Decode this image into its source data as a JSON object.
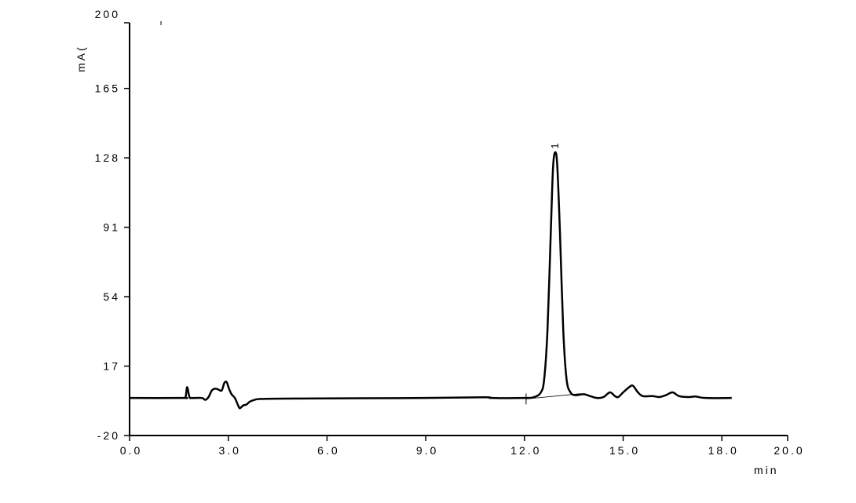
{
  "chart_data": {
    "type": "line",
    "title": "",
    "xlabel": "min",
    "ylabel": "mA(",
    "xlim": [
      0,
      20
    ],
    "ylim": [
      -20,
      200
    ],
    "x_ticks": [
      "0.0",
      "3.0",
      "6.0",
      "9.0",
      "12.0",
      "15.0",
      "18.0",
      "20.0"
    ],
    "x_tick_values": [
      0,
      3,
      6,
      9,
      12,
      15,
      18,
      20
    ],
    "y_ticks": [
      "-20",
      "17",
      "54",
      "91",
      "128",
      "165",
      "200"
    ],
    "y_tick_values": [
      -20,
      17,
      54,
      91,
      128,
      165,
      200
    ],
    "grid": false,
    "line_color": "#000000",
    "series": [
      {
        "points": [
          [
            0,
            0
          ],
          [
            1.6,
            0
          ],
          [
            1.7,
            0.5
          ],
          [
            1.75,
            5.8
          ],
          [
            1.82,
            0.5
          ],
          [
            1.9,
            0
          ],
          [
            2.2,
            0
          ],
          [
            2.3,
            -1
          ],
          [
            2.4,
            0.5
          ],
          [
            2.5,
            4
          ],
          [
            2.6,
            5
          ],
          [
            2.7,
            4.5
          ],
          [
            2.8,
            4
          ],
          [
            2.88,
            8
          ],
          [
            2.95,
            8.5
          ],
          [
            3.02,
            5
          ],
          [
            3.1,
            2
          ],
          [
            3.2,
            0
          ],
          [
            3.3,
            -4
          ],
          [
            3.35,
            -5.5
          ],
          [
            3.45,
            -4
          ],
          [
            3.55,
            -3.5
          ],
          [
            3.65,
            -2
          ],
          [
            3.8,
            -1
          ],
          [
            4.0,
            -0.5
          ],
          [
            5,
            -0.3
          ],
          [
            9,
            0
          ],
          [
            10.8,
            0.4
          ],
          [
            11,
            0
          ],
          [
            12.0,
            0
          ],
          [
            12.3,
            0.5
          ],
          [
            12.5,
            3
          ],
          [
            12.6,
            10
          ],
          [
            12.7,
            36
          ],
          [
            12.8,
            88
          ],
          [
            12.87,
            123
          ],
          [
            12.94,
            131
          ],
          [
            13.0,
            123
          ],
          [
            13.08,
            88
          ],
          [
            13.18,
            36
          ],
          [
            13.28,
            10
          ],
          [
            13.4,
            3
          ],
          [
            13.55,
            1.5
          ],
          [
            13.8,
            2
          ],
          [
            14.0,
            1
          ],
          [
            14.2,
            0
          ],
          [
            14.4,
            0.5
          ],
          [
            14.6,
            3
          ],
          [
            14.75,
            1
          ],
          [
            14.85,
            0.5
          ],
          [
            15.0,
            3
          ],
          [
            15.2,
            6
          ],
          [
            15.3,
            6.5
          ],
          [
            15.45,
            3
          ],
          [
            15.6,
            1
          ],
          [
            15.9,
            1
          ],
          [
            16.1,
            0.5
          ],
          [
            16.3,
            1.5
          ],
          [
            16.5,
            3
          ],
          [
            16.7,
            1
          ],
          [
            17.0,
            0.5
          ],
          [
            17.2,
            0.8
          ],
          [
            17.5,
            0
          ],
          [
            18.3,
            0
          ]
        ]
      }
    ],
    "integration_baseline": [
      [
        12.05,
        -0.5
      ],
      [
        13.7,
        2.3
      ]
    ],
    "annotations": [
      {
        "text": "1",
        "x": 12.94,
        "y": 131
      }
    ]
  }
}
